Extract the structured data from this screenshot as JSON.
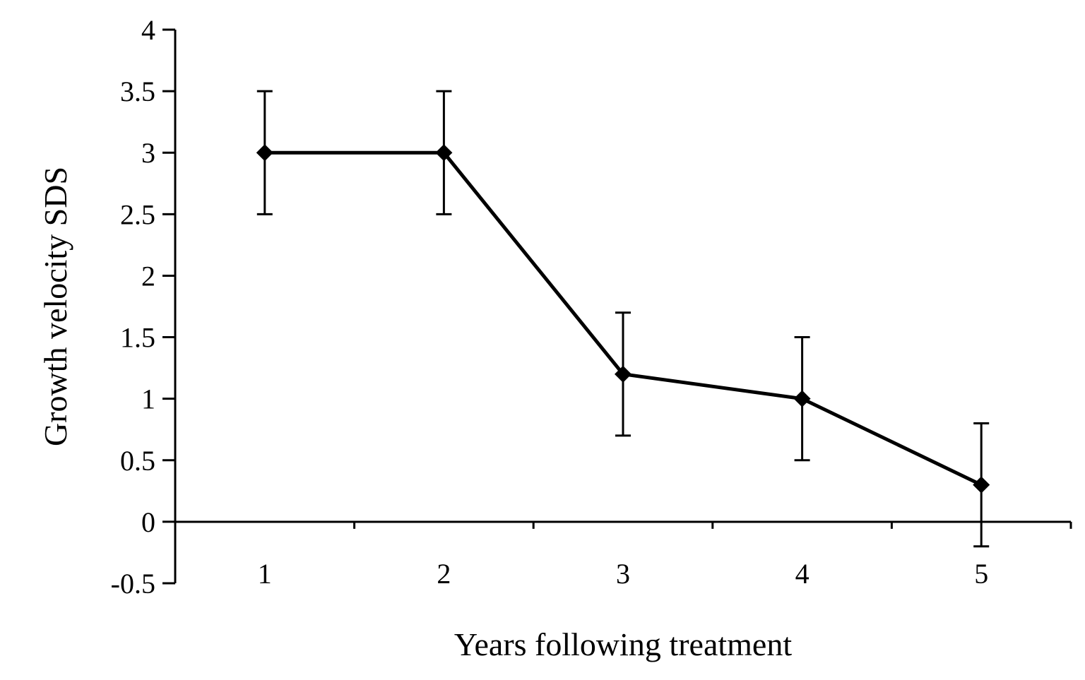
{
  "chart_data": {
    "type": "line",
    "title": "",
    "xlabel": "Years following treatment",
    "ylabel": "Growth velocity SDS",
    "categories": [
      "1",
      "2",
      "3",
      "4",
      "5"
    ],
    "ylim": [
      -0.5,
      4
    ],
    "yticks": [
      "-0.5",
      "0",
      "0.5",
      "1",
      "1.5",
      "2",
      "2.5",
      "3",
      "3.5",
      "4"
    ],
    "ytick_values": [
      -0.5,
      0,
      0.5,
      1,
      1.5,
      2,
      2.5,
      3,
      3.5,
      4
    ],
    "series": [
      {
        "values": [
          3.0,
          3.0,
          1.2,
          1.0,
          0.3
        ],
        "error_low": [
          2.5,
          2.5,
          0.7,
          0.5,
          -0.2
        ],
        "error_high": [
          3.5,
          3.5,
          1.7,
          1.5,
          0.8
        ],
        "marker": "diamond"
      }
    ],
    "grid": false,
    "legend": "none",
    "line_color": "#000000"
  }
}
